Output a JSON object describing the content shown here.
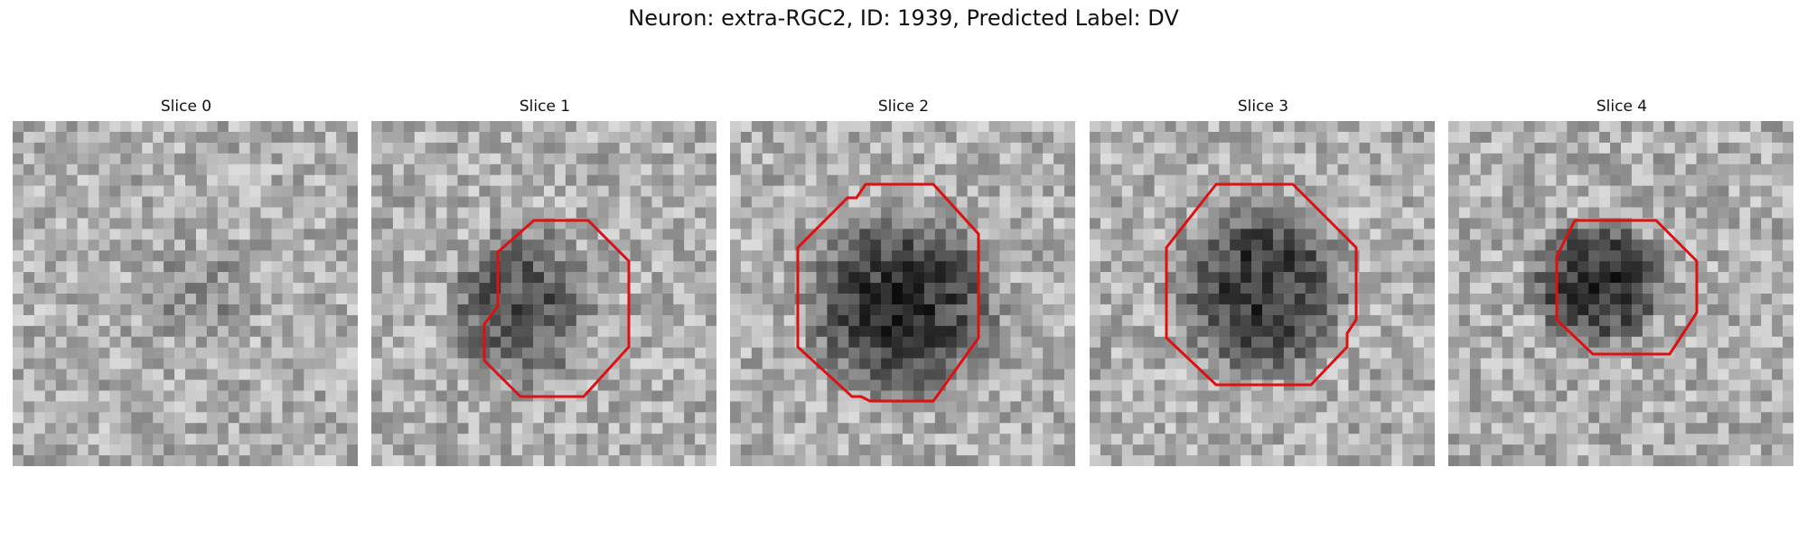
{
  "figure": {
    "title": "Neuron: extra-RGC2, ID: 1939, Predicted Label: DV"
  },
  "panels": [
    {
      "title": "Slice 0",
      "has_contour": false,
      "blob_strength": 0.18,
      "contour_color": "#dd1111"
    },
    {
      "title": "Slice 1",
      "has_contour": true,
      "blob_strength": 0.55,
      "contour_color": "#dd1111"
    },
    {
      "title": "Slice 2",
      "has_contour": true,
      "blob_strength": 0.75,
      "contour_color": "#dd1111"
    },
    {
      "title": "Slice 3",
      "has_contour": true,
      "blob_strength": 0.72,
      "contour_color": "#dd1111"
    },
    {
      "title": "Slice 4",
      "has_contour": true,
      "blob_strength": 0.8,
      "contour_color": "#dd1111"
    }
  ]
}
